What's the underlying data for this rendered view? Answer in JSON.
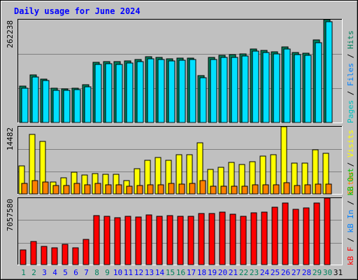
{
  "chart_data": {
    "type": "bar",
    "title": "Daily usage for June 2024",
    "days": [
      "1",
      "2",
      "3",
      "4",
      "5",
      "6",
      "7",
      "8",
      "9",
      "10",
      "11",
      "12",
      "13",
      "14",
      "15",
      "16",
      "17",
      "18",
      "19",
      "20",
      "21",
      "22",
      "23",
      "24",
      "25",
      "26",
      "27",
      "28",
      "29",
      "30",
      "31"
    ],
    "weekend_days": [
      "1",
      "2",
      "8",
      "9",
      "15",
      "16",
      "22",
      "23",
      "29",
      "30"
    ],
    "panels": [
      {
        "id": "hits-files",
        "max_label": "262238",
        "max_value": 262238,
        "series": [
          {
            "name": "Hits",
            "color": "#00805c",
            "values": [
              92000,
              121000,
              111000,
              88000,
              86000,
              88000,
              96000,
              153000,
              156000,
              155000,
              157000,
              161000,
              167000,
              166000,
              163000,
              164000,
              165000,
              120000,
              166000,
              172000,
              173000,
              174000,
              187000,
              183000,
              180000,
              192000,
              179000,
              176000,
              210000,
              262238,
              null
            ]
          },
          {
            "name": "Files",
            "color": "#00e0ff",
            "values": [
              89000,
              117000,
              108000,
              84000,
              83000,
              85000,
              92000,
              150000,
              152000,
              150000,
              154000,
              157000,
              164000,
              162000,
              159000,
              161000,
              162000,
              116000,
              162000,
              168000,
              168000,
              172000,
              183000,
              180000,
              177000,
              189000,
              175000,
              173000,
              206000,
              258000,
              null
            ]
          },
          {
            "name": "Pages",
            "color": "#00c8c8",
            "values": []
          }
        ]
      },
      {
        "id": "sites-visits",
        "max_label": "14482",
        "max_value": 14482,
        "series": [
          {
            "name": "Visits",
            "color": "#ffff00",
            "values": [
              6000,
              12800,
              11300,
              2600,
              3400,
              4700,
              4100,
              4400,
              4200,
              4200,
              2900,
              5400,
              7300,
              7800,
              7200,
              8400,
              8400,
              11000,
              5300,
              5700,
              6800,
              6300,
              6900,
              8100,
              8400,
              14482,
              6700,
              6600,
              9500,
              8700,
              null
            ]
          },
          {
            "name": "Sites",
            "color": "#ff8000",
            "values": [
              2300,
              2800,
              2600,
              1800,
              1800,
              2300,
              2000,
              2200,
              1900,
              1900,
              1700,
              1800,
              1900,
              2000,
              2200,
              2100,
              2300,
              2800,
              1700,
              1700,
              1700,
              1700,
              1900,
              2000,
              1900,
              2400,
              1800,
              1900,
              2100,
              2100,
              null
            ]
          }
        ]
      },
      {
        "id": "kbytes",
        "max_label": "7057580",
        "max_value": 7057580,
        "series": [
          {
            "name": "KBytes",
            "color": "#ff0000",
            "values": [
              1550000,
              2450000,
              1950000,
              1800000,
              2150000,
              1800000,
              2650000,
              5200000,
              5100000,
              4950000,
              5150000,
              5050000,
              5250000,
              5100000,
              5200000,
              5150000,
              5150000,
              5400000,
              5400000,
              5550000,
              5350000,
              5100000,
              5500000,
              5600000,
              6100000,
              6550000,
              5850000,
              6000000,
              6550000,
              7057580,
              null
            ]
          }
        ]
      }
    ],
    "legend_right": {
      "top": [
        "Pages",
        " / ",
        "Files",
        " / ",
        "Hits"
      ],
      "mid": [
        "Sites",
        " / ",
        "Visits"
      ],
      "bottom": [
        "kB F",
        " / ",
        "kB In",
        " / ",
        "kB Out"
      ]
    },
    "colors": {
      "background": "#c0c0c0",
      "plot_background": "#c0c0c0",
      "title": "#0000ff",
      "grid": "#808080",
      "weekday_label": "#0000ff",
      "weekend_label": "#00805c",
      "today_label": "#000000",
      "legend_pages": "#00c0c0",
      "legend_files": "#0080ff",
      "legend_hits": "#00805c",
      "legend_sites": "#ff8000",
      "legend_visits": "#ffff00",
      "legend_kbf": "#ff0000",
      "legend_kbin": "#0080ff",
      "legend_kbout": "#00c000"
    }
  }
}
